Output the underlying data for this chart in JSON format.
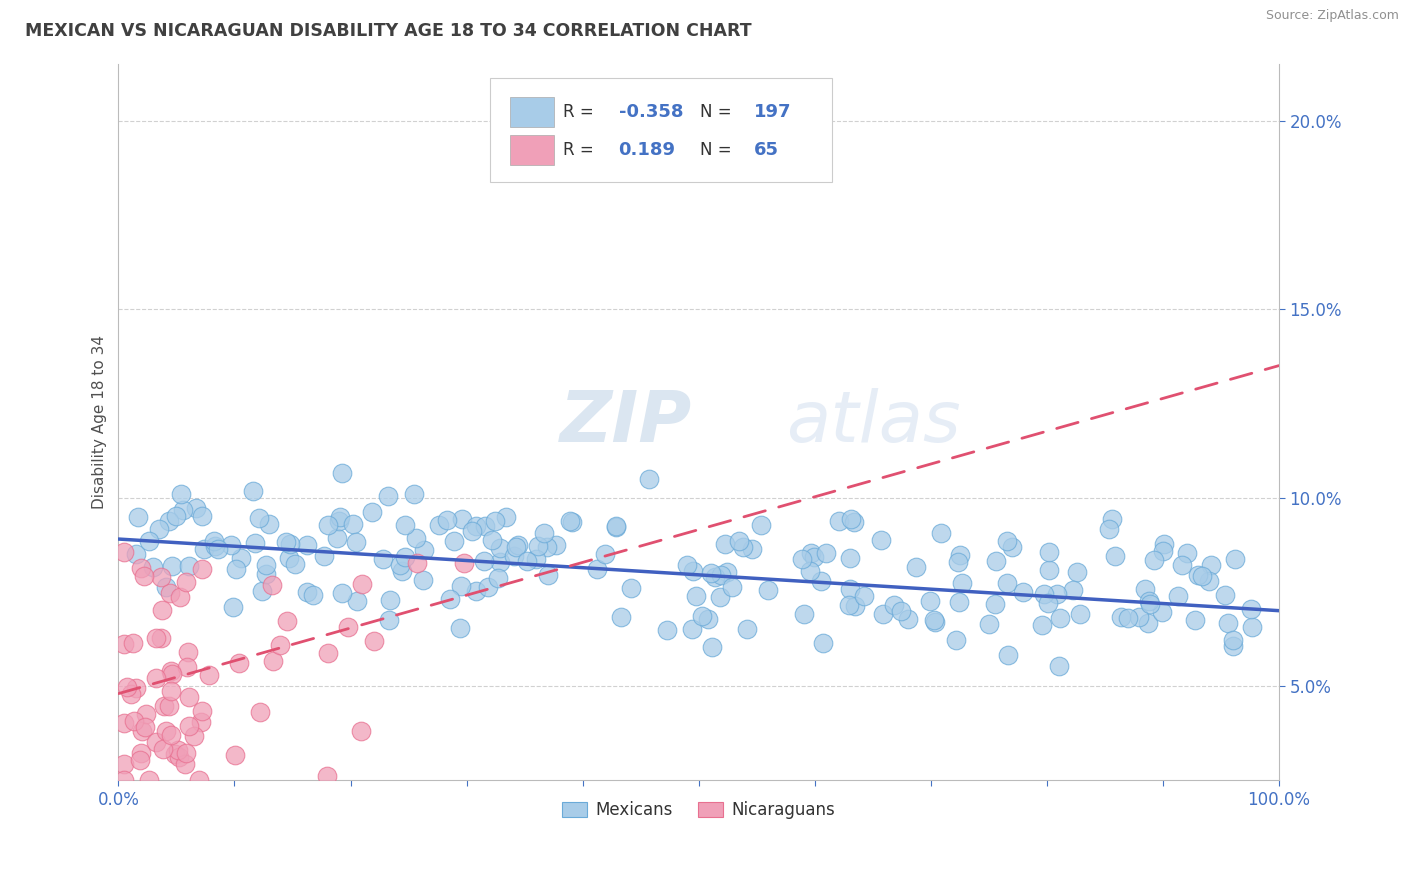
{
  "title": "MEXICAN VS NICARAGUAN DISABILITY AGE 18 TO 34 CORRELATION CHART",
  "source": "Source: ZipAtlas.com",
  "ylabel": "Disability Age 18 to 34",
  "xlim": [
    0,
    100
  ],
  "ylim": [
    2.5,
    21.5
  ],
  "yticks": [
    5,
    10,
    15,
    20
  ],
  "blue_R": -0.358,
  "blue_N": 197,
  "pink_R": 0.189,
  "pink_N": 65,
  "blue_color": "#A8CCE8",
  "pink_color": "#F0A0B8",
  "blue_edge_color": "#6AAAD8",
  "pink_edge_color": "#E87090",
  "blue_line_color": "#4060C0",
  "pink_line_color": "#E05070",
  "background_color": "#FFFFFF",
  "grid_color": "#CCCCCC",
  "title_color": "#404040",
  "watermark_color": "#C8D8EC",
  "blue_line_start_y": 8.9,
  "blue_line_end_y": 7.0,
  "pink_line_start_y": 4.8,
  "pink_line_end_y": 13.5
}
